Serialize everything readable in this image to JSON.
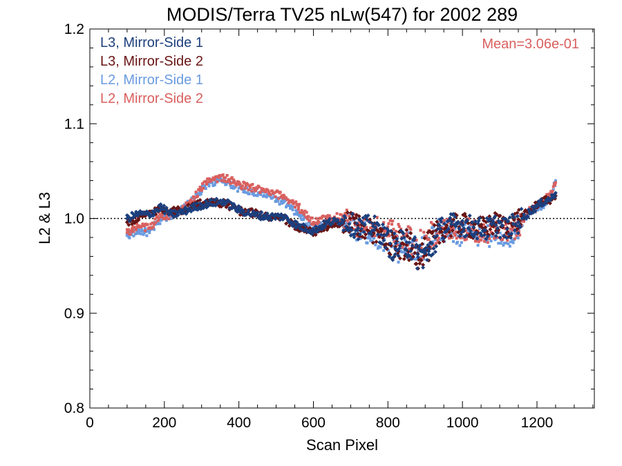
{
  "chart_data": {
    "type": "scatter",
    "title": "MODIS/Terra TV25 nLw(547) for 2002 289",
    "xlabel": "Scan Pixel",
    "ylabel": "L2 & L3",
    "xlim": [
      0,
      1354
    ],
    "ylim": [
      0.8,
      1.2
    ],
    "xticks": [
      "0",
      "200",
      "400",
      "600",
      "800",
      "1000",
      "1200"
    ],
    "yticks": [
      "0.8",
      "0.9",
      "1.0",
      "1.1",
      "1.2"
    ],
    "reference_line": 1.0,
    "annotation": {
      "text": "Mean=3.06e-01",
      "color": "#d9605f"
    },
    "legend_position": "top-left",
    "series": [
      {
        "name": "L3, Mirror-Side 1",
        "color": "#1c3f7d",
        "marker": "diamond",
        "points": [
          [
            100,
            1.0
          ],
          [
            130,
            1.005
          ],
          [
            160,
            1.004
          ],
          [
            190,
            1.012
          ],
          [
            220,
            1.004
          ],
          [
            250,
            1.007
          ],
          [
            280,
            1.012
          ],
          [
            320,
            1.016
          ],
          [
            360,
            1.018
          ],
          [
            400,
            1.009
          ],
          [
            440,
            1.004
          ],
          [
            480,
            1.002
          ],
          [
            520,
            1.002
          ],
          [
            560,
            0.992
          ],
          [
            600,
            0.987
          ],
          [
            640,
            0.996
          ],
          [
            680,
            0.998
          ],
          [
            720,
            0.99
          ],
          [
            760,
            0.992
          ],
          [
            790,
            0.982
          ],
          [
            820,
            0.968
          ],
          [
            850,
            0.975
          ],
          [
            880,
            0.962
          ],
          [
            910,
            0.962
          ],
          [
            940,
            0.989
          ],
          [
            970,
            0.994
          ],
          [
            1000,
            0.993
          ],
          [
            1030,
            0.991
          ],
          [
            1060,
            0.988
          ],
          [
            1090,
            0.993
          ],
          [
            1120,
            0.989
          ],
          [
            1150,
            0.996
          ],
          [
            1180,
            1.007
          ],
          [
            1210,
            1.016
          ],
          [
            1240,
            1.022
          ],
          [
            1250,
            1.027
          ]
        ]
      },
      {
        "name": "L3, Mirror-Side 2",
        "color": "#6a1515",
        "marker": "diamond",
        "points": [
          [
            100,
            0.996
          ],
          [
            130,
            1.0
          ],
          [
            160,
            1.006
          ],
          [
            190,
            1.01
          ],
          [
            220,
            1.008
          ],
          [
            250,
            1.009
          ],
          [
            280,
            1.014
          ],
          [
            320,
            1.018
          ],
          [
            360,
            1.016
          ],
          [
            400,
            1.008
          ],
          [
            440,
            1.006
          ],
          [
            480,
            1.001
          ],
          [
            520,
            1.0
          ],
          [
            560,
            0.99
          ],
          [
            600,
            0.985
          ],
          [
            640,
            0.992
          ],
          [
            680,
            0.995
          ],
          [
            720,
            0.993
          ],
          [
            760,
            0.986
          ],
          [
            790,
            0.983
          ],
          [
            820,
            0.97
          ],
          [
            850,
            0.972
          ],
          [
            880,
            0.963
          ],
          [
            910,
            0.97
          ],
          [
            940,
            0.986
          ],
          [
            970,
            0.992
          ],
          [
            1000,
            0.994
          ],
          [
            1030,
            0.99
          ],
          [
            1060,
            0.99
          ],
          [
            1090,
            0.995
          ],
          [
            1120,
            0.99
          ],
          [
            1150,
            0.999
          ],
          [
            1180,
            1.008
          ],
          [
            1210,
            1.018
          ],
          [
            1240,
            1.02
          ],
          [
            1250,
            1.024
          ]
        ]
      },
      {
        "name": "L2, Mirror-Side 1",
        "color": "#6a9be0",
        "marker": "square",
        "points": [
          [
            100,
            0.982
          ],
          [
            130,
            0.987
          ],
          [
            160,
            0.985
          ],
          [
            190,
            0.999
          ],
          [
            220,
            1.004
          ],
          [
            250,
            1.01
          ],
          [
            280,
            1.02
          ],
          [
            320,
            1.038
          ],
          [
            360,
            1.04
          ],
          [
            400,
            1.032
          ],
          [
            440,
            1.028
          ],
          [
            480,
            1.024
          ],
          [
            520,
            1.017
          ],
          [
            560,
            1.004
          ],
          [
            600,
            0.99
          ],
          [
            640,
            0.997
          ],
          [
            680,
            0.998
          ],
          [
            720,
            0.987
          ],
          [
            760,
            0.982
          ],
          [
            790,
            0.978
          ],
          [
            820,
            0.968
          ],
          [
            850,
            0.975
          ],
          [
            880,
            0.964
          ],
          [
            910,
            0.971
          ],
          [
            940,
            0.985
          ],
          [
            970,
            0.988
          ],
          [
            1000,
            0.982
          ],
          [
            1030,
            0.985
          ],
          [
            1060,
            0.979
          ],
          [
            1090,
            0.986
          ],
          [
            1120,
            0.98
          ],
          [
            1150,
            0.99
          ],
          [
            1180,
            1.008
          ],
          [
            1210,
            1.012
          ],
          [
            1240,
            1.025
          ],
          [
            1250,
            1.04
          ]
        ]
      },
      {
        "name": "L2, Mirror-Side 2",
        "color": "#d9605f",
        "marker": "square",
        "points": [
          [
            100,
            0.985
          ],
          [
            130,
            0.992
          ],
          [
            160,
            0.99
          ],
          [
            190,
            1.003
          ],
          [
            220,
            1.003
          ],
          [
            250,
            1.01
          ],
          [
            280,
            1.022
          ],
          [
            320,
            1.042
          ],
          [
            360,
            1.043
          ],
          [
            400,
            1.036
          ],
          [
            440,
            1.032
          ],
          [
            480,
            1.027
          ],
          [
            520,
            1.024
          ],
          [
            560,
            1.012
          ],
          [
            600,
            0.996
          ],
          [
            640,
            1.001
          ],
          [
            680,
            1.002
          ],
          [
            720,
            0.992
          ],
          [
            760,
            0.991
          ],
          [
            790,
            0.989
          ],
          [
            820,
            0.98
          ],
          [
            850,
            0.984
          ],
          [
            880,
            0.97
          ],
          [
            910,
            0.978
          ],
          [
            940,
            0.99
          ],
          [
            970,
            0.99
          ],
          [
            1000,
            0.988
          ],
          [
            1030,
            0.988
          ],
          [
            1060,
            0.984
          ],
          [
            1090,
            0.99
          ],
          [
            1120,
            0.985
          ],
          [
            1150,
            0.992
          ],
          [
            1180,
            1.008
          ],
          [
            1210,
            1.014
          ],
          [
            1240,
            1.028
          ],
          [
            1250,
            1.038
          ]
        ]
      }
    ]
  }
}
